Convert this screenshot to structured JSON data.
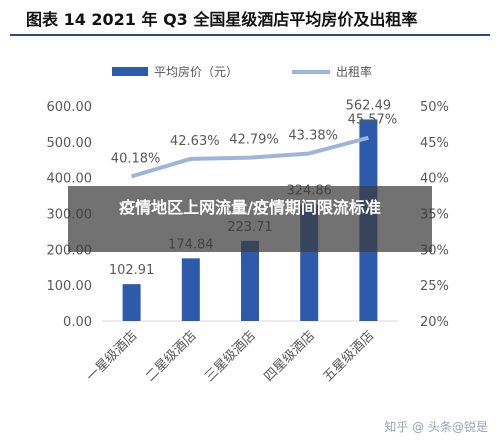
{
  "figure": {
    "title": "图表 14 2021 年 Q3 全国星级酒店平均房价及出租率"
  },
  "overlay": {
    "text": "疫情地区上网流量/疫情期间限流标准"
  },
  "watermark": {
    "text": "知乎 @ 头条@锐是"
  },
  "colors": {
    "bar": "#2e5aac",
    "line": "#9fb4da",
    "axis": "#d9d9d9",
    "text": "#595959"
  },
  "chart_data": {
    "type": "bar",
    "categories": [
      "一星级酒店",
      "二星级酒店",
      "三星级酒店",
      "四星级酒店",
      "五星级酒店"
    ],
    "series": [
      {
        "name": "平均房价（元）",
        "type": "bar",
        "axis": "left",
        "values": [
          102.91,
          174.84,
          223.71,
          324.86,
          562.49
        ],
        "labels": [
          "102.91",
          "174.84",
          "223.71",
          "324.86",
          "562.49"
        ]
      },
      {
        "name": "出租率",
        "type": "line",
        "axis": "right",
        "values": [
          40.18,
          42.63,
          42.79,
          43.38,
          45.57
        ],
        "labels": [
          "40.18%",
          "42.63%",
          "42.79%",
          "43.38%",
          "45.57%"
        ]
      }
    ],
    "ylim": [
      0,
      600
    ],
    "yticks": [
      "0.00",
      "100.00",
      "200.00",
      "300.00",
      "400.00",
      "500.00",
      "600.00"
    ],
    "y2lim": [
      20,
      50
    ],
    "y2ticks": [
      "20%",
      "25%",
      "30%",
      "35%",
      "40%",
      "45%",
      "50%"
    ],
    "legend_position": "top",
    "grid": false
  }
}
